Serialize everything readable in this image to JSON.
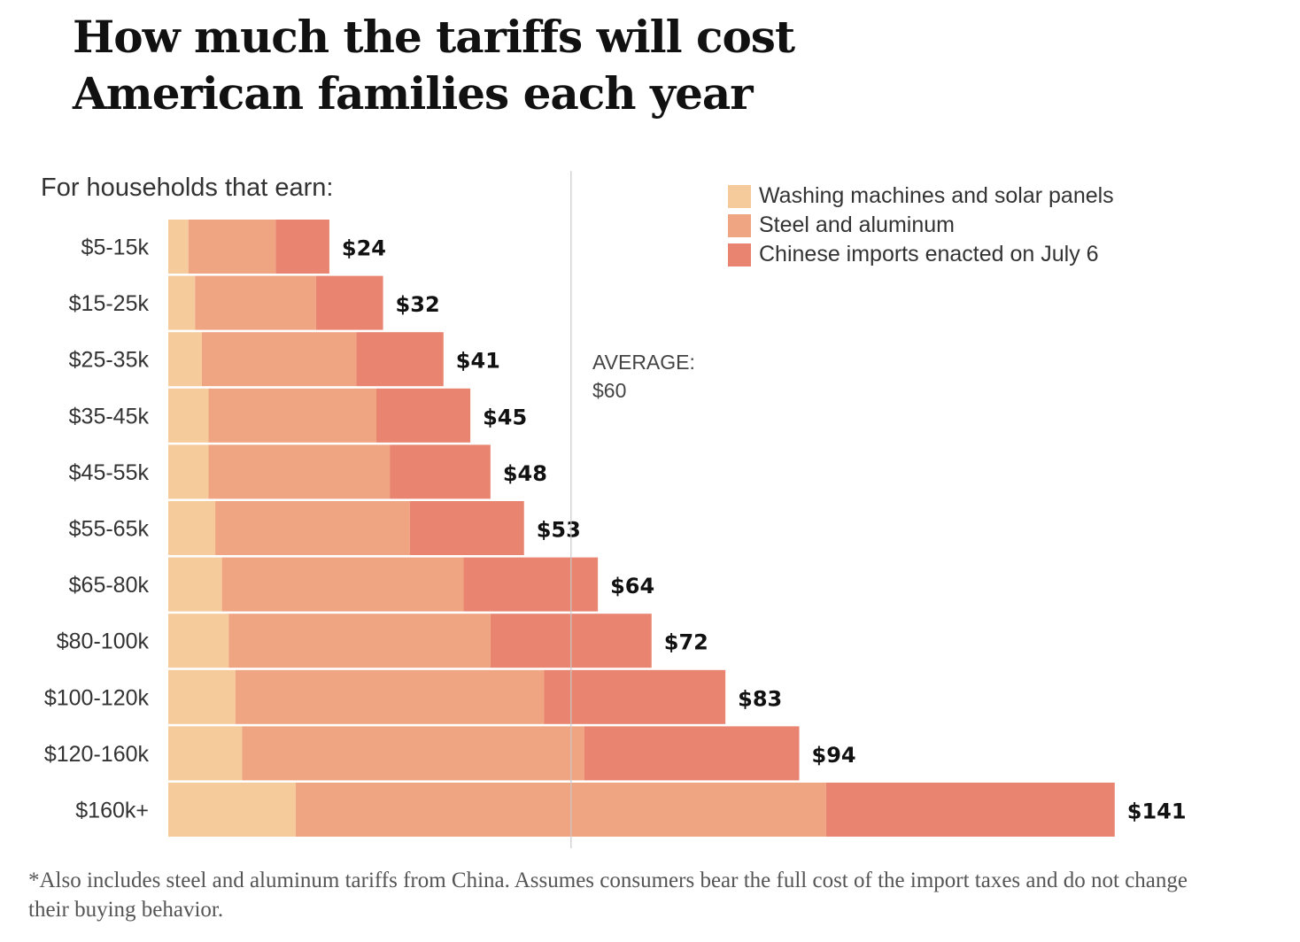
{
  "title_lines": [
    "How much the tariffs will cost",
    "American families each year"
  ],
  "subtitle": "For households that earn:",
  "footnote": "*Also includes steel and aluminum tariffs from China. Assumes consumers bear the full cost of the import taxes and do not change their buying behavior.",
  "average": {
    "label": "AVERAGE:",
    "value_text": "$60",
    "value": 60
  },
  "colors": {
    "washing": "#f5cb9b",
    "steel": "#f0a582",
    "chinese": "#e8846f",
    "average_line": "#c8c8c8"
  },
  "chart_data": {
    "type": "bar",
    "orientation": "horizontal",
    "stacked": true,
    "categories": [
      "$5-15k",
      "$15-25k",
      "$25-35k",
      "$35-45k",
      "$45-55k",
      "$55-65k",
      "$65-80k",
      "$80-100k",
      "$100-120k",
      "$120-160k",
      "$160k+"
    ],
    "series": [
      {
        "name": "Washing machines and solar panels",
        "color_key": "washing",
        "values": [
          3,
          4,
          5,
          6,
          6,
          7,
          8,
          9,
          10,
          11,
          19
        ]
      },
      {
        "name": "Steel and aluminum",
        "color_key": "steel",
        "values": [
          13,
          18,
          23,
          25,
          27,
          29,
          36,
          39,
          46,
          51,
          79
        ]
      },
      {
        "name": "Chinese imports enacted on July 6",
        "color_key": "chinese",
        "values": [
          8,
          10,
          13,
          14,
          15,
          17,
          20,
          24,
          27,
          32,
          43
        ]
      }
    ],
    "totals": [
      24,
      32,
      41,
      45,
      48,
      53,
      64,
      72,
      83,
      94,
      141
    ],
    "total_labels": [
      "$24",
      "$32",
      "$41",
      "$45",
      "$48",
      "$53",
      "$64",
      "$72",
      "$83",
      "$94",
      "$141"
    ],
    "xlim": [
      0,
      141
    ],
    "reference_line": 60,
    "legend_position": "top-right",
    "grid": false
  }
}
